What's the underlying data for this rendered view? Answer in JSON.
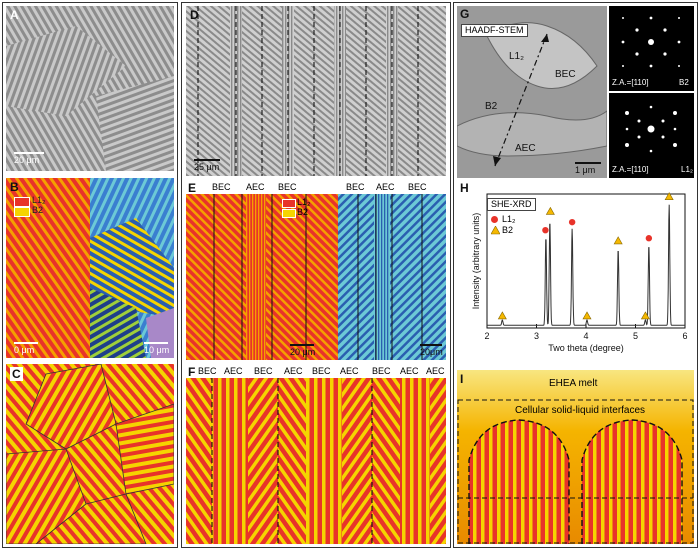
{
  "panels": {
    "A": {
      "label": "A",
      "scale": "20 μm"
    },
    "B": {
      "label": "B",
      "legend": [
        "L1₂",
        "B2"
      ],
      "scale_left": "0 μm",
      "scale_right": "10 μm"
    },
    "C": {
      "label": "C"
    },
    "D": {
      "label": "D",
      "scale": "25 μm"
    },
    "E": {
      "label": "E",
      "top_labels_left": [
        "BEC",
        "AEC",
        "BEC"
      ],
      "top_labels_right": [
        "BEC",
        "AEC",
        "BEC"
      ],
      "legend": [
        "L1₂",
        "B2"
      ],
      "scale_left": "20 μm",
      "scale_right": "20μm"
    },
    "F": {
      "label": "F",
      "top_labels": [
        "BEC",
        "AEC",
        "BEC",
        "AEC",
        "BEC",
        "AEC",
        "BEC",
        "AEC"
      ]
    },
    "G": {
      "label": "G",
      "title": "HAADF-STEM",
      "regions": [
        "L1₂",
        "BEC",
        "B2",
        "AEC"
      ],
      "scale": "1 μm",
      "za_top": "Z.A.=[110]",
      "za_top_phase": "B2",
      "za_bottom": "Z.A.=[110]",
      "za_bottom_phase": "L1₂"
    },
    "H": {
      "label": "H",
      "title": "SHE-XRD",
      "legend": [
        "L1₂",
        "B2"
      ]
    },
    "I": {
      "label": "I",
      "melt": "EHEA melt",
      "interface": "Cellular solid-liquid interfaces"
    }
  },
  "colors": {
    "red": "#e8332a",
    "yellow": "#f5d400",
    "blue_dark": "#2a5fb0",
    "cyan": "#6cc9d6",
    "green": "#9fcf3a",
    "purple": "#a888c8"
  },
  "chart_data": {
    "type": "line",
    "title": "SHE-XRD",
    "xlabel": "Two theta (degree)",
    "ylabel": "Intensity (arbitrary units)",
    "xlim": [
      2,
      6
    ],
    "xticks": [
      2,
      3,
      4,
      5,
      6
    ],
    "series": [
      {
        "name": "SHE-XRD",
        "peaks": [
          {
            "x": 2.31,
            "y": 0.04
          },
          {
            "x": 3.19,
            "y": 0.66
          },
          {
            "x": 3.27,
            "y": 0.78
          },
          {
            "x": 3.72,
            "y": 0.72
          },
          {
            "x": 4.02,
            "y": 0.04
          },
          {
            "x": 4.65,
            "y": 0.57
          },
          {
            "x": 5.2,
            "y": 0.04
          },
          {
            "x": 5.27,
            "y": 0.6
          },
          {
            "x": 5.68,
            "y": 0.9
          }
        ],
        "baseline": 0.02
      }
    ],
    "markers": [
      {
        "x": 2.31,
        "y": 0.09,
        "phase": "B2"
      },
      {
        "x": 3.18,
        "y": 0.73,
        "phase": "L1₂"
      },
      {
        "x": 3.28,
        "y": 0.87,
        "phase": "B2"
      },
      {
        "x": 3.72,
        "y": 0.79,
        "phase": "L1₂"
      },
      {
        "x": 4.02,
        "y": 0.09,
        "phase": "B2"
      },
      {
        "x": 4.65,
        "y": 0.65,
        "phase": "B2"
      },
      {
        "x": 5.2,
        "y": 0.09,
        "phase": "B2"
      },
      {
        "x": 5.27,
        "y": 0.67,
        "phase": "L1₂"
      },
      {
        "x": 5.68,
        "y": 0.98,
        "phase": "B2"
      }
    ]
  }
}
